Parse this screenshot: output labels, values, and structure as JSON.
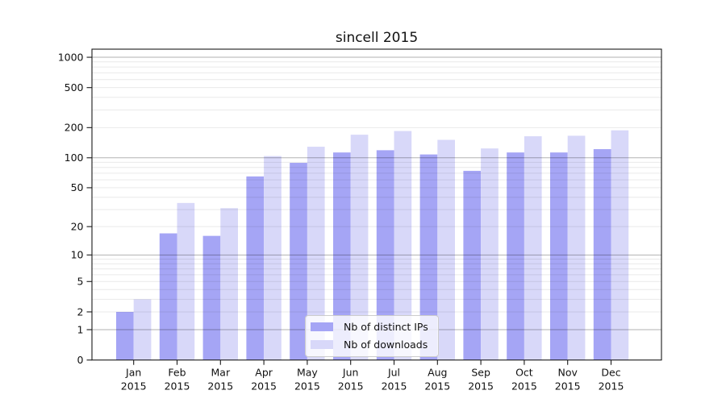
{
  "chart_data": {
    "type": "bar",
    "title": "sincell 2015",
    "categories": [
      "Jan",
      "Feb",
      "Mar",
      "Apr",
      "May",
      "Jun",
      "Jul",
      "Aug",
      "Sep",
      "Oct",
      "Nov",
      "Dec"
    ],
    "x_tick_second_line": "2015",
    "series": [
      {
        "name": "Nb of distinct IPs",
        "color": "#a5a5f5",
        "values": [
          2,
          17,
          16,
          65,
          89,
          113,
          119,
          108,
          74,
          113,
          113,
          122
        ]
      },
      {
        "name": "Nb of downloads",
        "color": "#d8d8f9",
        "values": [
          3,
          35,
          31,
          104,
          129,
          170,
          185,
          151,
          124,
          164,
          166,
          188
        ]
      }
    ],
    "y_scale": "log10(value+1)",
    "yticks": [
      0,
      1,
      2,
      5,
      10,
      20,
      50,
      100,
      200,
      500,
      1000
    ],
    "y_major_gridlines": [
      1,
      10,
      100,
      1000
    ],
    "y_minor_gridlines": [
      2,
      3,
      4,
      5,
      6,
      7,
      8,
      9,
      20,
      30,
      40,
      50,
      60,
      70,
      80,
      90,
      200,
      300,
      400,
      500,
      600,
      700,
      800,
      900
    ],
    "ylim": [
      0,
      1200
    ],
    "grid": true,
    "legend_position": "lower center",
    "colors": {
      "bar_dark": "#a5a5f5",
      "bar_light": "#d8d8f9",
      "frame": "#1a1a1a",
      "grid_major": "rgba(0,0,0,0.30)",
      "grid_minor": "rgba(0,0,0,0.085)",
      "text": "#111111"
    }
  }
}
